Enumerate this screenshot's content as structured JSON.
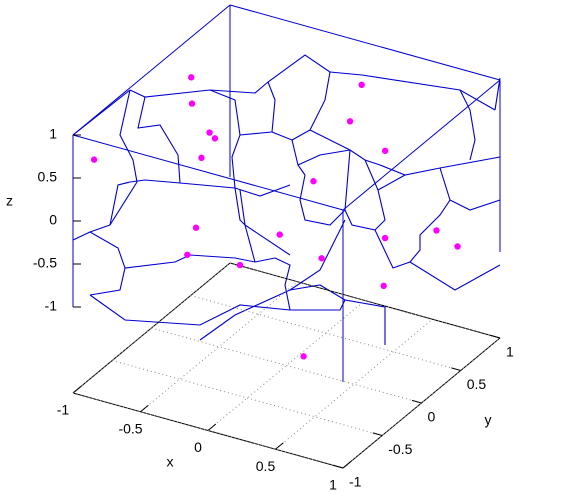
{
  "chart_data": {
    "type": "scatter3d",
    "xlabel": "x",
    "ylabel": "y",
    "zlabel": "z",
    "xlim": [
      -1,
      1
    ],
    "ylim": [
      -1,
      1
    ],
    "zlim": [
      -1,
      1
    ],
    "xticks": [
      -1,
      -0.5,
      0,
      0.5,
      1
    ],
    "yticks": [
      -1,
      -0.5,
      0,
      0.5,
      1
    ],
    "zticks": [
      -1,
      -0.5,
      0,
      0.5,
      1
    ],
    "grid": true,
    "series": [
      {
        "color": "#ff00ff",
        "x": [
          -0.88,
          -0.7,
          0.15,
          0.18,
          -0.57,
          -0.53,
          0.44,
          -0.96,
          -0.63,
          0.2,
          -0.67,
          -0.05,
          0.82,
          0.86,
          0.73,
          -0.56,
          -0.17,
          0.26,
          0.72,
          0.65
        ],
        "y": [
          0.3,
          0,
          0.7,
          0.5,
          0,
          0,
          0.5,
          -0.8,
          0,
          0,
          0,
          0,
          0.5,
          0.7,
          0,
          -0.3,
          -0.3,
          0,
          0,
          -0.9
        ],
        "z": [
          0.74,
          0.74,
          0.8,
          0.54,
          0.46,
          0.41,
          0.31,
          0.58,
          0.14,
          0.23,
          -0.69,
          -0.5,
          -0.45,
          -0.77,
          -0.2,
          -0.73,
          -0.68,
          -0.64,
          -0.76,
          -0.93
        ]
      }
    ]
  }
}
